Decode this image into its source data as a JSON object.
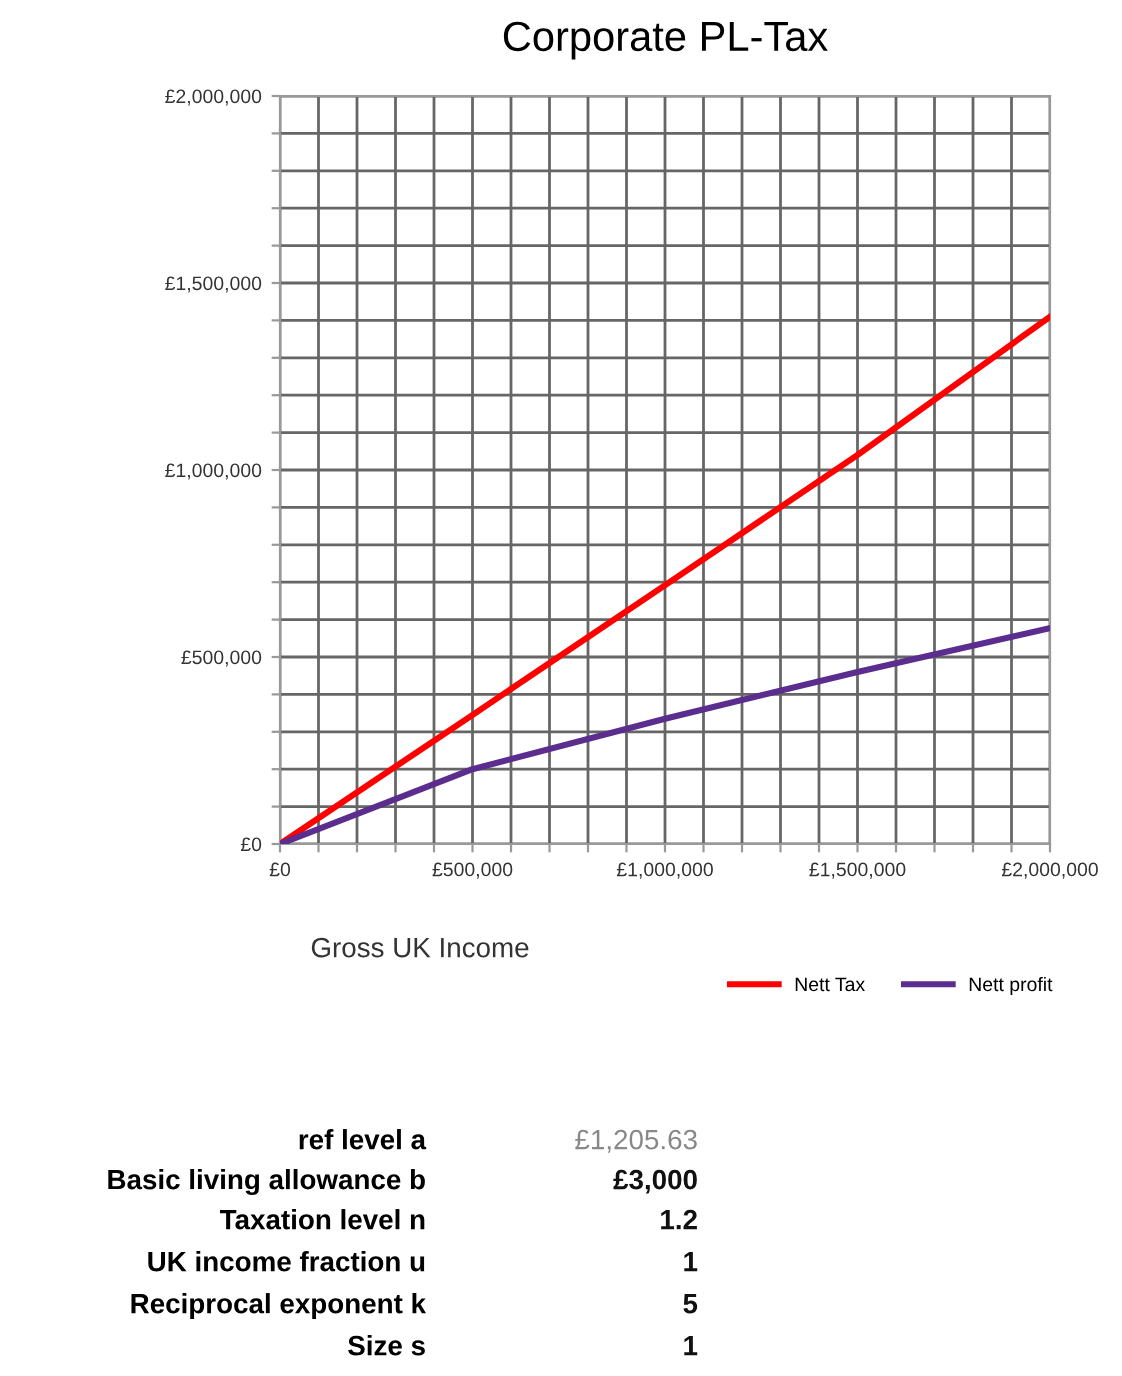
{
  "chart_data": {
    "type": "line",
    "title": "Corporate PL-Tax",
    "xlabel": "Gross UK Income",
    "x": [
      0,
      500000,
      1000000,
      1500000,
      2000000
    ],
    "series": [
      {
        "name": "Nett Tax",
        "color": "#ff0000",
        "values": [
          0,
          345000,
          692000,
          1040000,
          1410000
        ]
      },
      {
        "name": "Nett profit",
        "color": "#5b2d8e",
        "values": [
          0,
          200000,
          335000,
          460000,
          577000
        ]
      }
    ],
    "xlim": [
      0,
      2000000
    ],
    "ylim": [
      0,
      2000000
    ],
    "xticks": [
      {
        "value": 0,
        "label": "£0"
      },
      {
        "value": 100000,
        "label": null
      },
      {
        "value": 200000,
        "label": null
      },
      {
        "value": 300000,
        "label": null
      },
      {
        "value": 400000,
        "label": null
      },
      {
        "value": 500000,
        "label": "£500,000"
      },
      {
        "value": 600000,
        "label": null
      },
      {
        "value": 700000,
        "label": null
      },
      {
        "value": 800000,
        "label": null
      },
      {
        "value": 900000,
        "label": null
      },
      {
        "value": 1000000,
        "label": "£1,000,000"
      },
      {
        "value": 1100000,
        "label": null
      },
      {
        "value": 1200000,
        "label": null
      },
      {
        "value": 1300000,
        "label": null
      },
      {
        "value": 1400000,
        "label": null
      },
      {
        "value": 1500000,
        "label": "£1,500,000"
      },
      {
        "value": 1600000,
        "label": null
      },
      {
        "value": 1700000,
        "label": null
      },
      {
        "value": 1800000,
        "label": null
      },
      {
        "value": 1900000,
        "label": null
      },
      {
        "value": 2000000,
        "label": "£2,000,000"
      }
    ],
    "yticks": [
      {
        "value": 0,
        "label": "£0"
      },
      {
        "value": 100000,
        "label": null
      },
      {
        "value": 200000,
        "label": null
      },
      {
        "value": 300000,
        "label": null
      },
      {
        "value": 400000,
        "label": null
      },
      {
        "value": 500000,
        "label": "£500,000"
      },
      {
        "value": 600000,
        "label": null
      },
      {
        "value": 700000,
        "label": null
      },
      {
        "value": 800000,
        "label": null
      },
      {
        "value": 900000,
        "label": null
      },
      {
        "value": 1000000,
        "label": "£1,000,000"
      },
      {
        "value": 1100000,
        "label": null
      },
      {
        "value": 1200000,
        "label": null
      },
      {
        "value": 1300000,
        "label": null
      },
      {
        "value": 1400000,
        "label": null
      },
      {
        "value": 1500000,
        "label": "£1,500,000"
      },
      {
        "value": 1600000,
        "label": null
      },
      {
        "value": 1700000,
        "label": null
      },
      {
        "value": 1800000,
        "label": null
      },
      {
        "value": 1900000,
        "label": null
      },
      {
        "value": 2000000,
        "label": "£2,000,000"
      }
    ],
    "grid": true,
    "legend": "bottom right",
    "marker": "none",
    "line_style": "solid",
    "annotations": [
      "ref level a",
      "£1,205.63",
      "Basic living allowance b",
      "£3,000",
      "Taxation level n",
      "1.2",
      "UK income fraction u",
      "1",
      "Reciprocal exponent k",
      "5",
      "Size s",
      "1"
    ]
  }
}
